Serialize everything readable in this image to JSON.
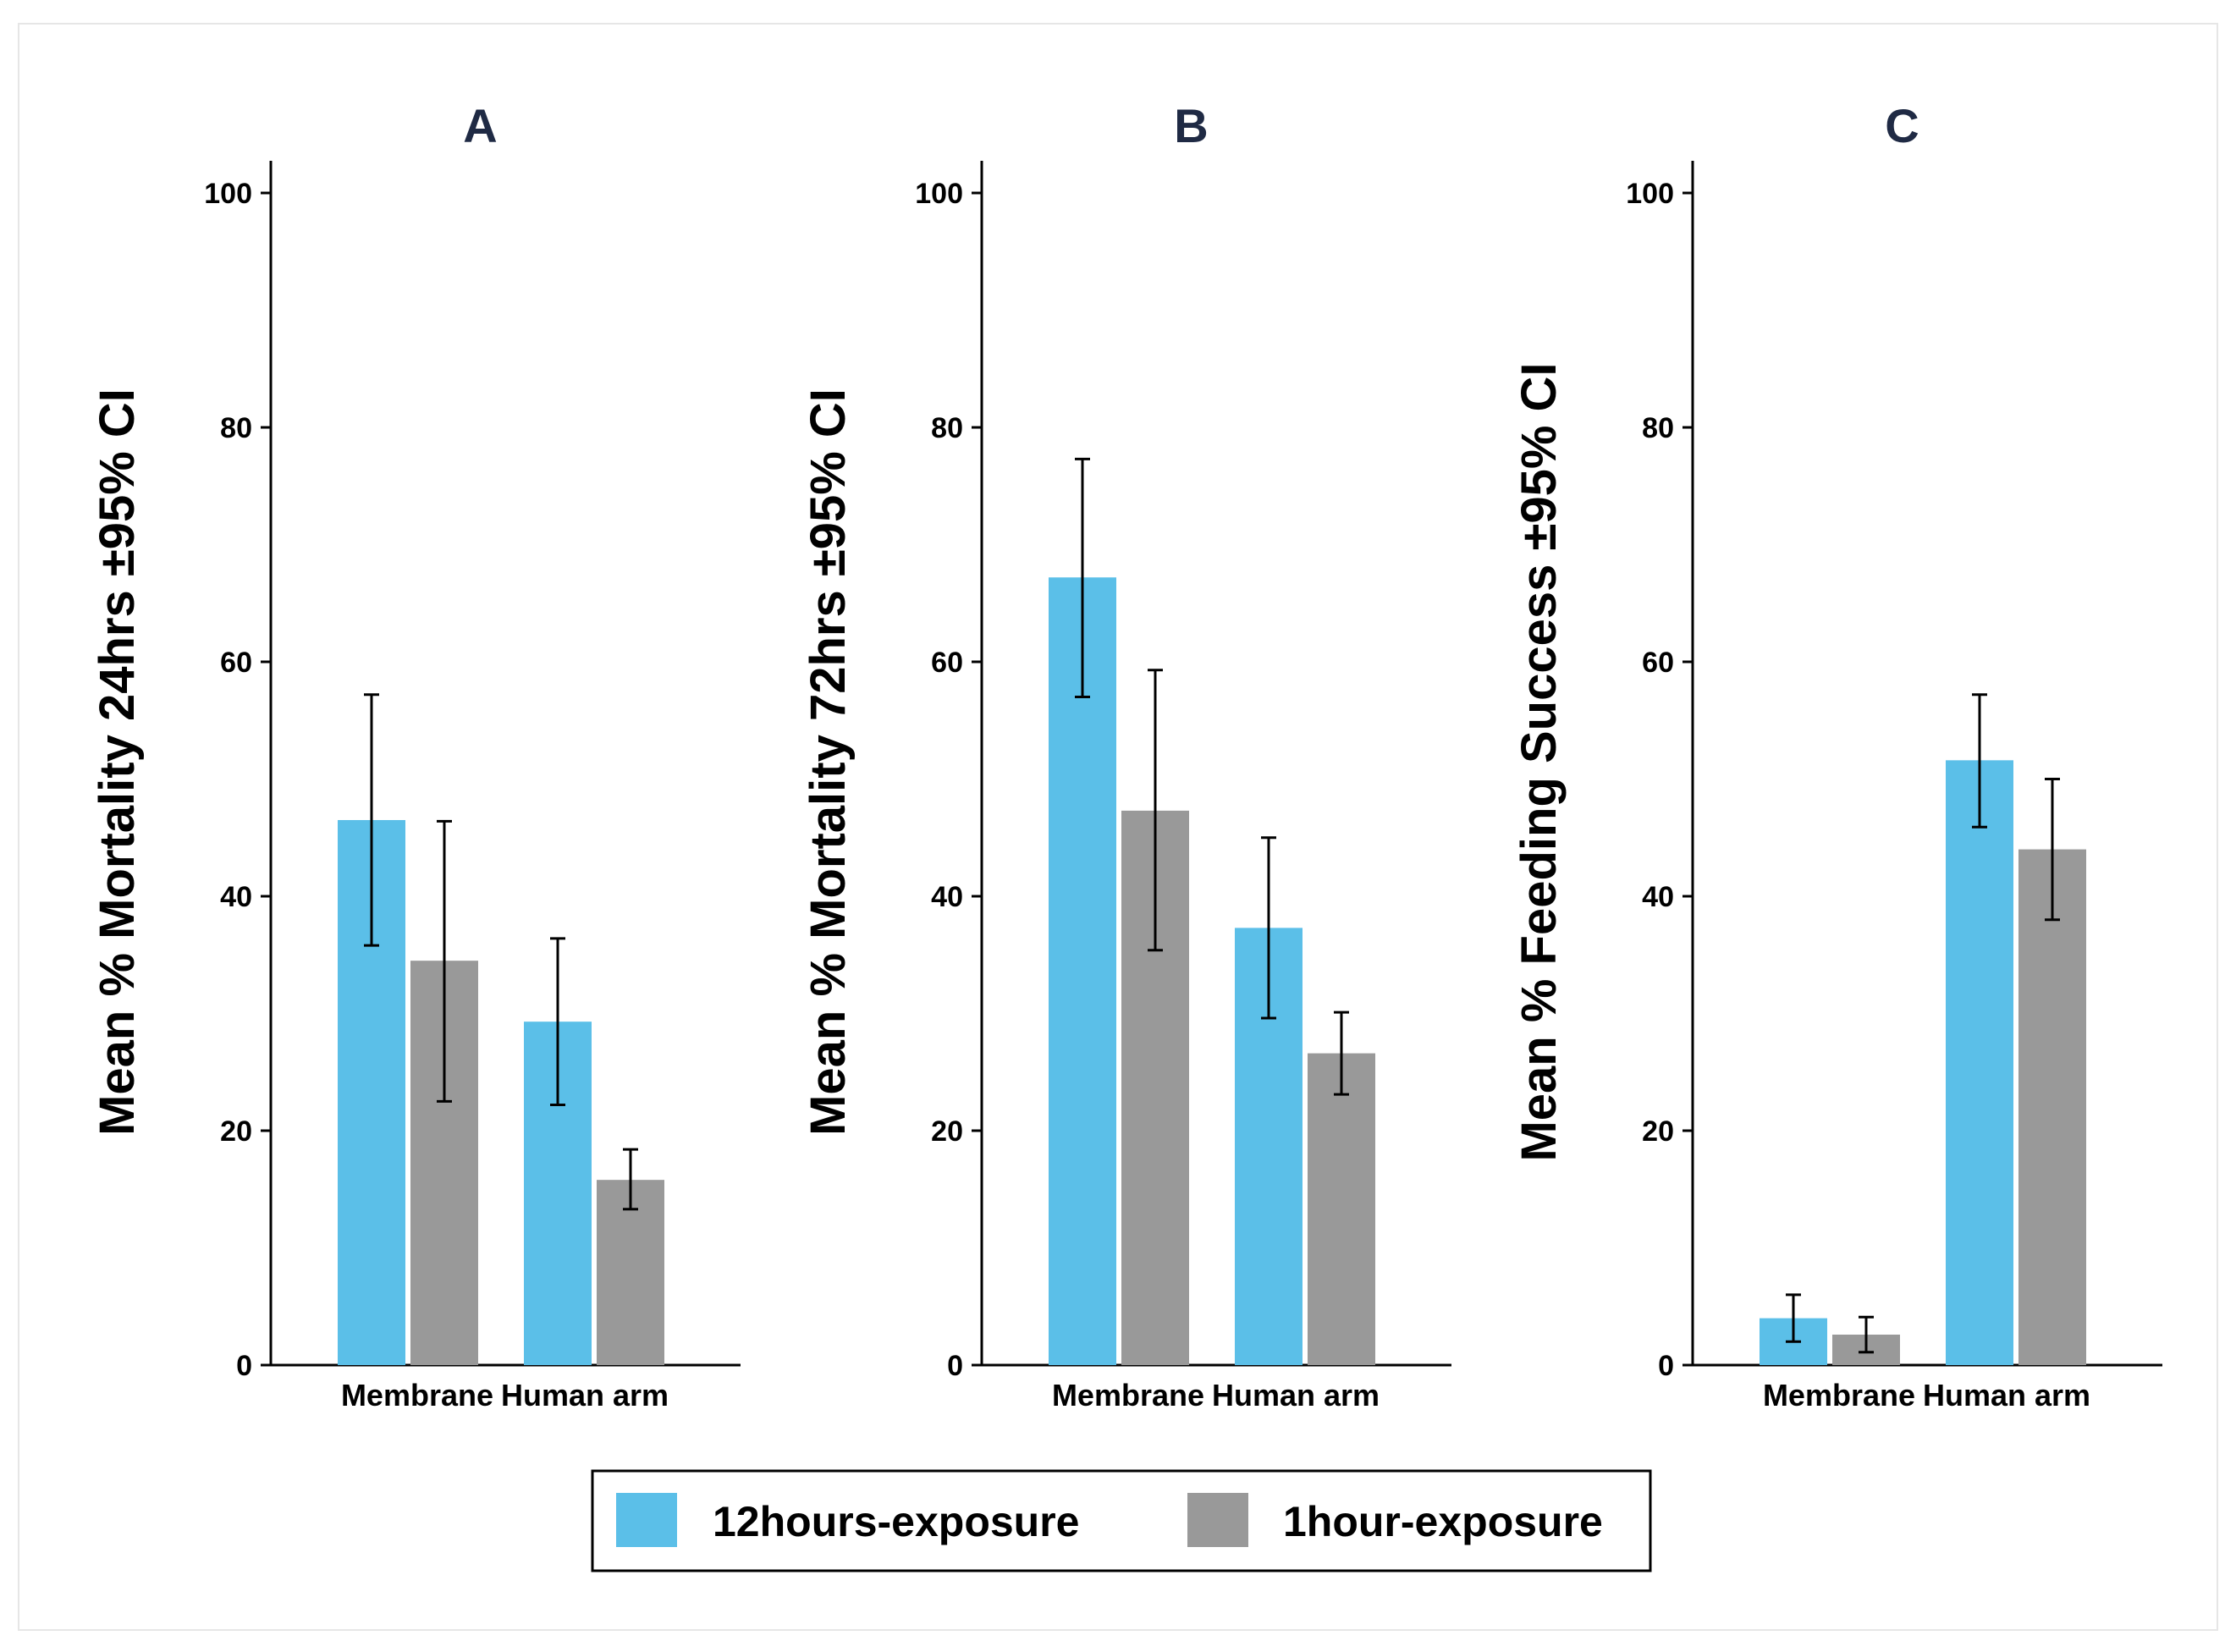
{
  "colors": {
    "series_12h": "#5bbfe8",
    "series_1h": "#999999",
    "frame": "#e6e6e6"
  },
  "legend": {
    "items": [
      {
        "label": "12hours-exposure",
        "color": "#5bbfe8"
      },
      {
        "label": "1hour-exposure",
        "color": "#999999"
      }
    ]
  },
  "chart_data": [
    {
      "type": "bar",
      "title": "A",
      "ylabel": "Mean % Mortality 24hrs ±95% CI",
      "xlabel": "",
      "ylim": [
        0,
        100
      ],
      "yticks": [
        0,
        20,
        40,
        60,
        80,
        100
      ],
      "categories": [
        "Membrane",
        "Human arm"
      ],
      "series": [
        {
          "name": "12hours-exposure",
          "values": [
            46.5,
            29.3
          ],
          "ci_low": [
            35.8,
            22.2
          ],
          "ci_high": [
            57.2,
            36.4
          ]
        },
        {
          "name": "1hour-exposure",
          "values": [
            34.5,
            15.8
          ],
          "ci_low": [
            22.5,
            13.3
          ],
          "ci_high": [
            46.4,
            18.4
          ]
        }
      ]
    },
    {
      "type": "bar",
      "title": "B",
      "ylabel": "Mean % Mortality 72hrs ±95% CI",
      "xlabel": "",
      "ylim": [
        0,
        100
      ],
      "yticks": [
        0,
        20,
        40,
        60,
        80,
        100
      ],
      "categories": [
        "Membrane",
        "Human arm"
      ],
      "series": [
        {
          "name": "12hours-exposure",
          "values": [
            67.2,
            37.3
          ],
          "ci_low": [
            57.0,
            29.6
          ],
          "ci_high": [
            77.3,
            45.0
          ]
        },
        {
          "name": "1hour-exposure",
          "values": [
            47.3,
            26.6
          ],
          "ci_low": [
            35.4,
            23.1
          ],
          "ci_high": [
            59.3,
            30.1
          ]
        }
      ]
    },
    {
      "type": "bar",
      "title": "C",
      "ylabel": "Mean % Feeding Success ±95% CI",
      "xlabel": "",
      "ylim": [
        0,
        100
      ],
      "yticks": [
        0,
        20,
        40,
        60,
        80,
        100
      ],
      "categories": [
        "Membrane",
        "Human arm"
      ],
      "series": [
        {
          "name": "12hours-exposure",
          "values": [
            4.0,
            51.6
          ],
          "ci_low": [
            2.0,
            45.9
          ],
          "ci_high": [
            6.0,
            57.2
          ]
        },
        {
          "name": "1hour-exposure",
          "values": [
            2.6,
            44.0
          ],
          "ci_low": [
            1.1,
            38.0
          ],
          "ci_high": [
            4.1,
            50.0
          ]
        }
      ]
    }
  ]
}
